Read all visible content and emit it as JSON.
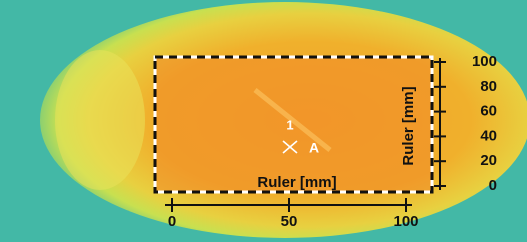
{
  "x_ruler": {
    "label": "Ruler [mm]",
    "ticks": [
      0,
      50,
      100
    ]
  },
  "y_ruler": {
    "label": "Ruler [mm]",
    "ticks": [
      0,
      20,
      40,
      60,
      80,
      100
    ]
  },
  "marker": {
    "number": "1",
    "letter": "A"
  }
}
